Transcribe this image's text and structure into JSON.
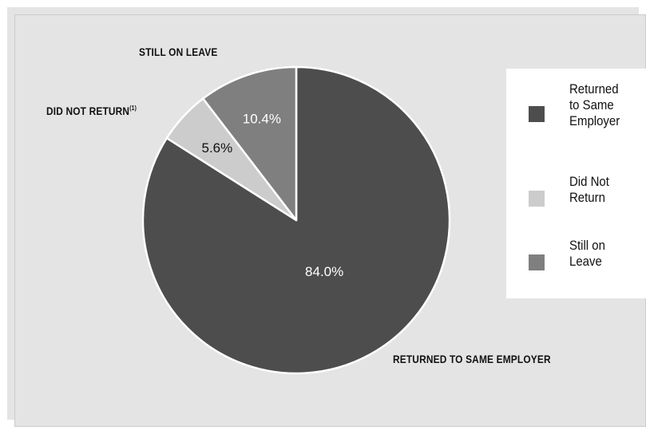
{
  "chart_data": {
    "type": "pie",
    "title": "",
    "slices": [
      {
        "name": "Returned to Same Employer",
        "value": 84.0,
        "label": "84.0%",
        "callout": "RETURNED TO SAME EMPLOYER",
        "color": "#4d4d4d"
      },
      {
        "name": "Did Not Return",
        "value": 5.6,
        "label": "5.6%",
        "callout": "DID NOT RETURN",
        "footnote": "(1)",
        "color": "#cccccc"
      },
      {
        "name": "Still on Leave",
        "value": 10.4,
        "label": "10.4%",
        "callout": "STILL ON LEAVE",
        "color": "#7f7f7f"
      }
    ],
    "legend": {
      "placement": "right",
      "entries": [
        {
          "label": "Returned\nto Same\nEmployer",
          "color": "#4d4d4d"
        },
        {
          "label": "Did Not\nReturn",
          "color": "#cccccc"
        },
        {
          "label": "Still on\nLeave",
          "color": "#7f7f7f"
        }
      ]
    },
    "start_angle_deg": 0,
    "direction": "clockwise",
    "slice_border_color": "#ffffff",
    "background_color": "#e4e4e4"
  }
}
